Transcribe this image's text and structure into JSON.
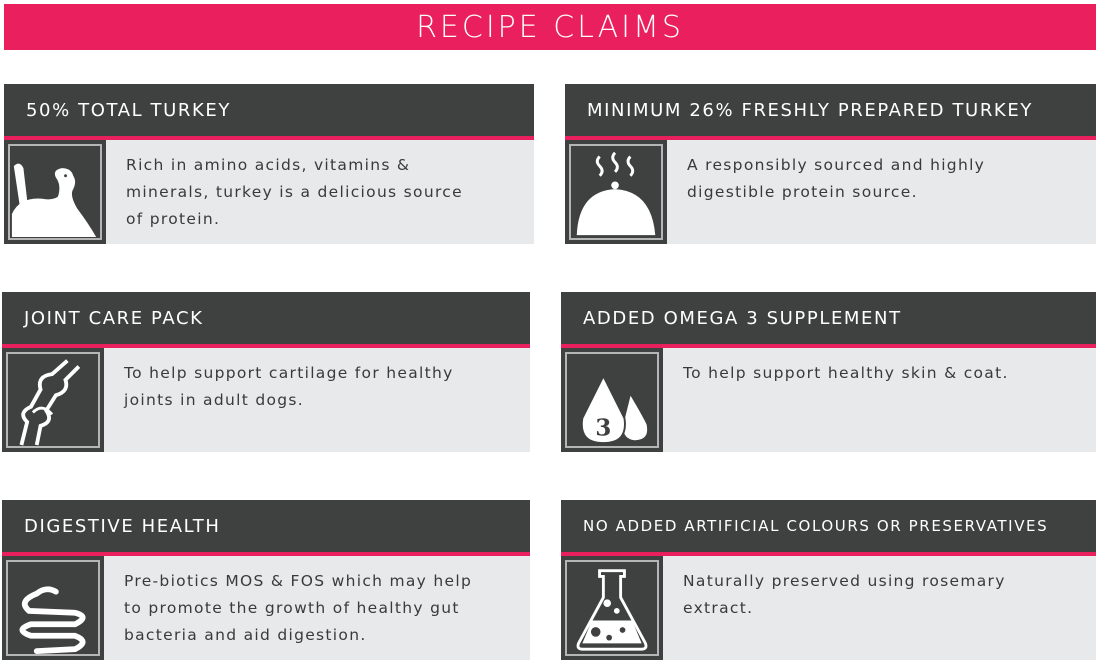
{
  "title": "RECIPE CLAIMS",
  "colors": {
    "accent": "#ea1f5e",
    "dark": "#3f4040",
    "panel": "#e8e9ea"
  },
  "claims": [
    {
      "heading": "50% TOTAL TURKEY",
      "text": "Rich in amino acids, vitamins & minerals, turkey is a delicious source of protein.",
      "icon": "turkey-icon"
    },
    {
      "heading": "MINIMUM 26% FRESHLY PREPARED TURKEY",
      "text": "A responsibly sourced and highly digestible protein source.",
      "icon": "cloche-icon"
    },
    {
      "heading": "JOINT CARE PACK",
      "text": "To help support cartilage for healthy joints in adult dogs.",
      "icon": "joint-icon"
    },
    {
      "heading": "ADDED OMEGA 3 SUPPLEMENT",
      "text": "To help support healthy skin & coat.",
      "icon": "oil-drops-icon",
      "icon_label": "3"
    },
    {
      "heading": "DIGESTIVE HEALTH",
      "text": "Pre-biotics MOS & FOS which may help to promote the growth of healthy gut bacteria and aid digestion.",
      "icon": "intestine-icon"
    },
    {
      "heading": "NO ADDED ARTIFICIAL COLOURS OR PRESERVATIVES",
      "text": "Naturally preserved using rosemary extract.",
      "icon": "flask-icon"
    }
  ]
}
